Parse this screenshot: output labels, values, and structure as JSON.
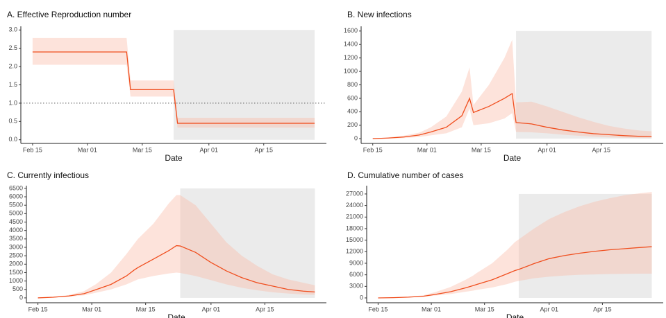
{
  "chart_data": [
    {
      "type": "line",
      "title": "A. Effective Reproduction number",
      "xlabel": "Date",
      "x": [
        "02-15",
        "02-19",
        "02-23",
        "02-27",
        "03-02",
        "03-06",
        "03-11",
        "03-12",
        "03-16",
        "03-20",
        "03-23",
        "03-24",
        "03-28",
        "04-01",
        "04-05",
        "04-09",
        "04-13",
        "04-17",
        "04-21",
        "04-25",
        "04-28"
      ],
      "values": [
        2.4,
        2.4,
        2.4,
        2.4,
        2.4,
        2.4,
        2.4,
        1.37,
        1.37,
        1.37,
        1.37,
        0.45,
        0.45,
        0.45,
        0.45,
        0.45,
        0.45,
        0.45,
        0.45,
        0.45,
        0.45
      ],
      "upper": [
        2.78,
        2.78,
        2.78,
        2.78,
        2.78,
        2.78,
        2.78,
        1.62,
        1.62,
        1.62,
        1.62,
        0.6,
        0.6,
        0.6,
        0.6,
        0.6,
        0.6,
        0.6,
        0.6,
        0.6,
        0.6
      ],
      "lower": [
        2.05,
        2.05,
        2.05,
        2.05,
        2.05,
        2.05,
        2.05,
        1.18,
        1.18,
        1.18,
        1.18,
        0.33,
        0.33,
        0.33,
        0.33,
        0.33,
        0.33,
        0.33,
        0.33,
        0.33,
        0.33
      ],
      "hline": 1,
      "shade": [
        "03-23",
        "04-28"
      ],
      "color": "#f04e1e",
      "band_color": "#fbb9a4",
      "shade_color": "#ebebeb",
      "xlim": [
        "02-12",
        "05-01"
      ],
      "xticks": [
        {
          "value": "02-15",
          "label": "Feb 15"
        },
        {
          "value": "03-01",
          "label": "Mar 01"
        },
        {
          "value": "03-15",
          "label": "Mar 15"
        },
        {
          "value": "04-01",
          "label": "Apr 01"
        },
        {
          "value": "04-15",
          "label": "Apr 15"
        }
      ],
      "ylim": [
        -0.1,
        3.1
      ],
      "yticks": [
        {
          "value": 0,
          "label": "0.0"
        },
        0.5,
        {
          "value": 1,
          "label": "1.0"
        },
        1.5,
        {
          "value": 2,
          "label": "2.0"
        },
        2.5,
        {
          "value": 3,
          "label": "3.0"
        }
      ]
    },
    {
      "type": "line",
      "title": "B. New infections",
      "xlabel": "Date",
      "x": [
        "02-15",
        "02-19",
        "02-23",
        "02-27",
        "03-02",
        "03-06",
        "03-10",
        "03-12",
        "03-13",
        "03-17",
        "03-21",
        "03-23",
        "03-24",
        "03-28",
        "04-01",
        "04-05",
        "04-09",
        "04-13",
        "04-17",
        "04-21",
        "04-25",
        "04-28"
      ],
      "values": [
        0,
        10,
        25,
        55,
        100,
        170,
        340,
        600,
        390,
        480,
        600,
        670,
        240,
        220,
        170,
        130,
        100,
        75,
        60,
        45,
        35,
        30
      ],
      "upper": [
        5,
        20,
        45,
        90,
        170,
        330,
        700,
        1060,
        500,
        800,
        1200,
        1470,
        540,
        550,
        480,
        400,
        320,
        250,
        190,
        150,
        120,
        110
      ],
      "lower": [
        0,
        3,
        10,
        25,
        50,
        80,
        170,
        450,
        200,
        230,
        300,
        380,
        100,
        95,
        80,
        60,
        45,
        30,
        20,
        15,
        10,
        8
      ],
      "shade": [
        "03-24",
        "04-28"
      ],
      "color": "#f04e1e",
      "band_color": "#fbb9a4",
      "shade_color": "#ebebeb",
      "xlim": [
        "02-12",
        "05-01"
      ],
      "xticks": [
        {
          "value": "02-15",
          "label": "Feb 15"
        },
        {
          "value": "03-01",
          "label": "Mar 01"
        },
        {
          "value": "03-15",
          "label": "Mar 15"
        },
        {
          "value": "04-01",
          "label": "Apr 01"
        },
        {
          "value": "04-15",
          "label": "Apr 15"
        }
      ],
      "ylim": [
        -70,
        1670
      ],
      "yticks": [
        0,
        200,
        400,
        600,
        800,
        1000,
        1200,
        1400,
        1600
      ]
    },
    {
      "type": "line",
      "title": "C. Currently infectious",
      "xlabel": "Date",
      "x": [
        "02-15",
        "02-19",
        "02-23",
        "02-27",
        "03-02",
        "03-06",
        "03-10",
        "03-12",
        "03-13",
        "03-17",
        "03-21",
        "03-23",
        "03-24",
        "03-28",
        "04-01",
        "04-05",
        "04-09",
        "04-13",
        "04-17",
        "04-21",
        "04-25",
        "04-28"
      ],
      "values": [
        0,
        40,
        110,
        250,
        480,
        800,
        1300,
        1650,
        1800,
        2300,
        2800,
        3100,
        3080,
        2700,
        2100,
        1600,
        1200,
        900,
        700,
        500,
        400,
        350
      ],
      "upper": [
        0,
        60,
        170,
        400,
        800,
        1500,
        2600,
        3200,
        3500,
        4400,
        5600,
        6100,
        6100,
        5500,
        4400,
        3300,
        2500,
        1900,
        1400,
        1100,
        900,
        750
      ],
      "lower": [
        0,
        25,
        70,
        150,
        300,
        500,
        800,
        1000,
        1100,
        1300,
        1450,
        1500,
        1480,
        1300,
        1050,
        800,
        600,
        450,
        330,
        260,
        200,
        180
      ],
      "shade": [
        "03-24",
        "04-28"
      ],
      "color": "#f04e1e",
      "band_color": "#fbb9a4",
      "shade_color": "#ebebeb",
      "xlim": [
        "02-12",
        "05-01"
      ],
      "xticks": [
        {
          "value": "02-15",
          "label": "Feb 15"
        },
        {
          "value": "03-01",
          "label": "Mar 01"
        },
        {
          "value": "03-15",
          "label": "Mar 15"
        },
        {
          "value": "04-01",
          "label": "Apr 01"
        },
        {
          "value": "04-15",
          "label": "Apr 15"
        }
      ],
      "ylim": [
        -290,
        6660
      ],
      "yticks": [
        0,
        500,
        1000,
        1500,
        2000,
        2500,
        3000,
        3500,
        4000,
        4500,
        5000,
        5500,
        6000,
        6500
      ]
    },
    {
      "type": "line",
      "title": "D. Cumulative number of cases",
      "xlabel": "Date",
      "x": [
        "02-15",
        "02-19",
        "02-23",
        "02-27",
        "03-02",
        "03-06",
        "03-10",
        "03-12",
        "03-13",
        "03-17",
        "03-21",
        "03-23",
        "03-24",
        "03-28",
        "04-01",
        "04-05",
        "04-09",
        "04-13",
        "04-17",
        "04-21",
        "04-25",
        "04-28"
      ],
      "values": [
        0,
        70,
        200,
        450,
        900,
        1600,
        2600,
        3200,
        3500,
        4700,
        6300,
        7100,
        7400,
        8900,
        10200,
        11000,
        11600,
        12100,
        12500,
        12800,
        13100,
        13300
      ],
      "upper": [
        0,
        100,
        300,
        700,
        1500,
        2800,
        4700,
        5800,
        6500,
        9000,
        12500,
        14500,
        15200,
        18000,
        20500,
        22300,
        23800,
        25000,
        25900,
        26700,
        27200,
        27500
      ],
      "lower": [
        0,
        50,
        150,
        300,
        600,
        1000,
        1600,
        1900,
        2100,
        2700,
        3600,
        4200,
        4400,
        5100,
        5500,
        5800,
        6000,
        6100,
        6200,
        6250,
        6300,
        6300
      ],
      "shade": [
        "03-24",
        "04-28"
      ],
      "color": "#f04e1e",
      "band_color": "#fbb9a4",
      "shade_color": "#ebebeb",
      "xlim": [
        "02-12",
        "05-01"
      ],
      "xticks": [
        {
          "value": "02-15",
          "label": "Feb 15"
        },
        {
          "value": "03-01",
          "label": "Mar 01"
        },
        {
          "value": "03-15",
          "label": "Mar 15"
        },
        {
          "value": "04-01",
          "label": "Apr 01"
        },
        {
          "value": "04-15",
          "label": "Apr 15"
        }
      ],
      "ylim": [
        -1260,
        29150
      ],
      "yticks": [
        0,
        3000,
        6000,
        9000,
        12000,
        15000,
        18000,
        21000,
        24000,
        27000
      ]
    }
  ]
}
